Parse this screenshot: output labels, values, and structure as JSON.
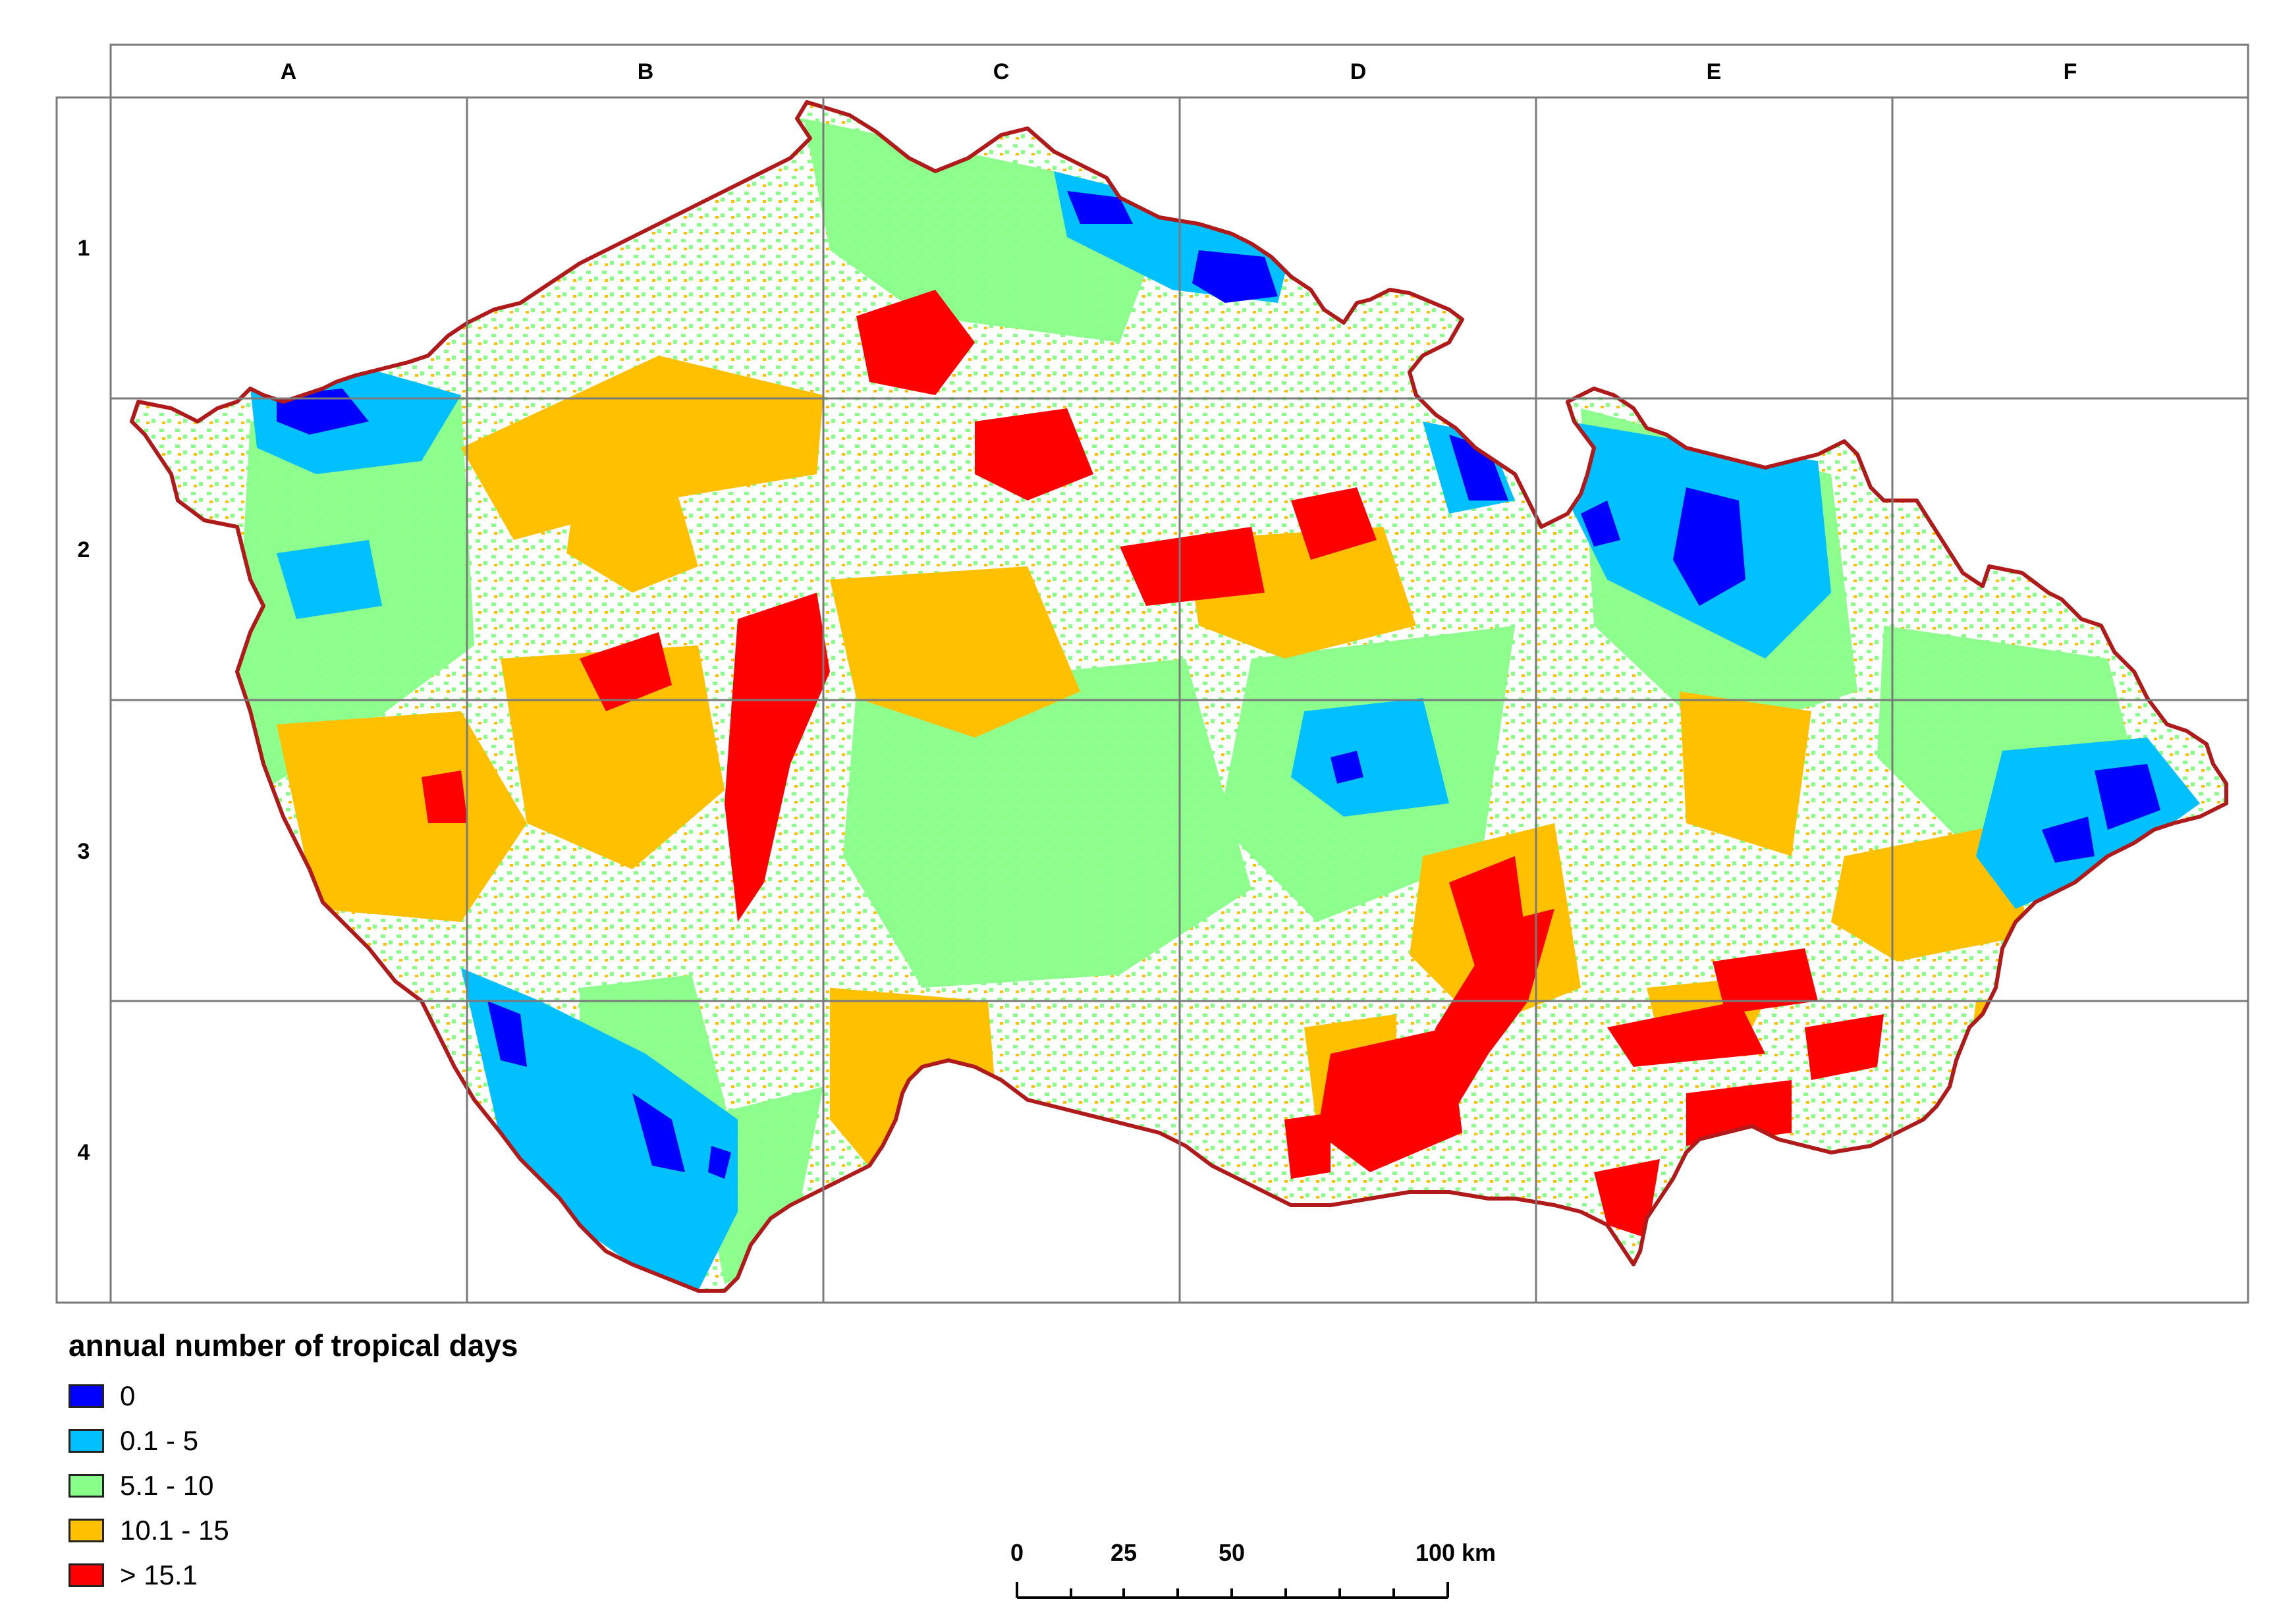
{
  "map": {
    "columns": [
      "A",
      "B",
      "C",
      "D",
      "E",
      "F"
    ],
    "rows": [
      "1",
      "2",
      "3",
      "4"
    ],
    "colors": {
      "border": "#b01a1a",
      "grid": "#7a7a7a",
      "zero": "#0000ff",
      "low": "#00c0ff",
      "mid": "#88ff88",
      "high": "#ffc000",
      "very_high": "#ff0000"
    }
  },
  "legend": {
    "title": "annual number of tropical days",
    "items": [
      {
        "label": "0",
        "color": "#0000ff"
      },
      {
        "label": "0.1 - 5",
        "color": "#00c0ff"
      },
      {
        "label": "5.1 - 10",
        "color": "#88ff88"
      },
      {
        "label": "10.1 - 15",
        "color": "#ffc000"
      },
      {
        "label": "> 15.1",
        "color": "#ff0000"
      }
    ]
  },
  "scale_bar": {
    "labels": [
      "0",
      "25",
      "50",
      "100 km"
    ]
  }
}
